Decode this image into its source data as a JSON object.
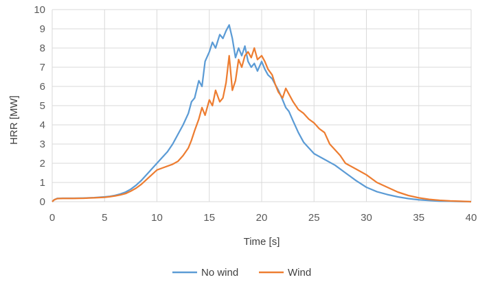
{
  "chart_data": {
    "type": "line",
    "xlabel": "Time [s]",
    "ylabel": "HRR [MW]",
    "xlim": [
      0,
      40
    ],
    "ylim": [
      0,
      10
    ],
    "xticks": [
      0,
      5,
      10,
      15,
      20,
      25,
      30,
      35,
      40
    ],
    "yticks": [
      0,
      1,
      2,
      3,
      4,
      5,
      6,
      7,
      8,
      9,
      10
    ],
    "grid": true,
    "legend_position": "bottom",
    "series": [
      {
        "name": "No wind",
        "color": "#5B9BD5",
        "x": [
          0,
          0.2,
          0.5,
          1,
          2,
          3,
          4,
          5,
          5.5,
          6,
          6.5,
          7,
          7.5,
          8,
          8.5,
          9,
          9.5,
          10,
          10.5,
          11,
          11.5,
          12,
          12.5,
          13,
          13.3,
          13.6,
          14,
          14.3,
          14.6,
          15,
          15.3,
          15.6,
          16,
          16.3,
          16.6,
          16.9,
          17.2,
          17.5,
          17.8,
          18.1,
          18.4,
          18.7,
          19,
          19.3,
          19.6,
          20,
          20.3,
          20.6,
          21,
          21.3,
          21.6,
          22,
          22.3,
          22.6,
          23,
          23.5,
          24,
          24.5,
          25,
          26,
          27,
          28,
          29,
          30,
          31,
          32,
          33,
          34,
          35,
          36,
          37,
          38,
          39,
          40
        ],
        "values": [
          0,
          0.1,
          0.17,
          0.18,
          0.18,
          0.19,
          0.21,
          0.25,
          0.28,
          0.33,
          0.4,
          0.5,
          0.65,
          0.85,
          1.1,
          1.4,
          1.7,
          2.0,
          2.3,
          2.6,
          3.0,
          3.5,
          4.0,
          4.6,
          5.2,
          5.4,
          6.3,
          6.0,
          7.3,
          7.8,
          8.3,
          8.0,
          8.7,
          8.5,
          8.9,
          9.2,
          8.5,
          7.5,
          8.0,
          7.6,
          8.1,
          7.3,
          7.0,
          7.2,
          6.8,
          7.3,
          6.9,
          6.6,
          6.4,
          6.1,
          5.8,
          5.3,
          4.9,
          4.7,
          4.2,
          3.6,
          3.1,
          2.8,
          2.5,
          2.2,
          1.9,
          1.5,
          1.1,
          0.75,
          0.52,
          0.37,
          0.25,
          0.16,
          0.1,
          0.06,
          0.03,
          0.02,
          0.01,
          0
        ],
        "label": "No wind"
      },
      {
        "name": "Wind",
        "color": "#ED7D31",
        "x": [
          0,
          0.2,
          0.5,
          1,
          2,
          3,
          4,
          5,
          5.5,
          6,
          6.5,
          7,
          7.5,
          8,
          8.5,
          9,
          9.5,
          10,
          10.5,
          11,
          11.5,
          12,
          12.5,
          13,
          13.3,
          13.6,
          14,
          14.3,
          14.6,
          15,
          15.3,
          15.6,
          16,
          16.3,
          16.6,
          16.9,
          17.2,
          17.5,
          17.8,
          18.1,
          18.4,
          18.7,
          19,
          19.3,
          19.6,
          20,
          20.3,
          20.6,
          21,
          21.3,
          21.6,
          22,
          22.3,
          22.6,
          23,
          23.5,
          24,
          24.5,
          25,
          25.5,
          26,
          26.5,
          27,
          27.5,
          28,
          29,
          30,
          31,
          32,
          33,
          34,
          35,
          36,
          37,
          38,
          39,
          40
        ],
        "values": [
          0,
          0.1,
          0.16,
          0.17,
          0.17,
          0.18,
          0.2,
          0.23,
          0.26,
          0.3,
          0.35,
          0.42,
          0.55,
          0.7,
          0.9,
          1.15,
          1.4,
          1.65,
          1.75,
          1.85,
          1.95,
          2.1,
          2.4,
          2.8,
          3.2,
          3.7,
          4.3,
          4.9,
          4.5,
          5.3,
          5.0,
          5.8,
          5.2,
          5.4,
          6.2,
          7.6,
          5.8,
          6.3,
          7.4,
          7.0,
          7.6,
          7.8,
          7.5,
          8.0,
          7.4,
          7.6,
          7.3,
          6.9,
          6.6,
          6.1,
          5.7,
          5.4,
          5.9,
          5.6,
          5.2,
          4.8,
          4.6,
          4.3,
          4.1,
          3.8,
          3.6,
          3.0,
          2.7,
          2.4,
          2.0,
          1.7,
          1.4,
          1.0,
          0.75,
          0.5,
          0.32,
          0.2,
          0.12,
          0.07,
          0.04,
          0.02,
          0
        ]
      }
    ]
  }
}
